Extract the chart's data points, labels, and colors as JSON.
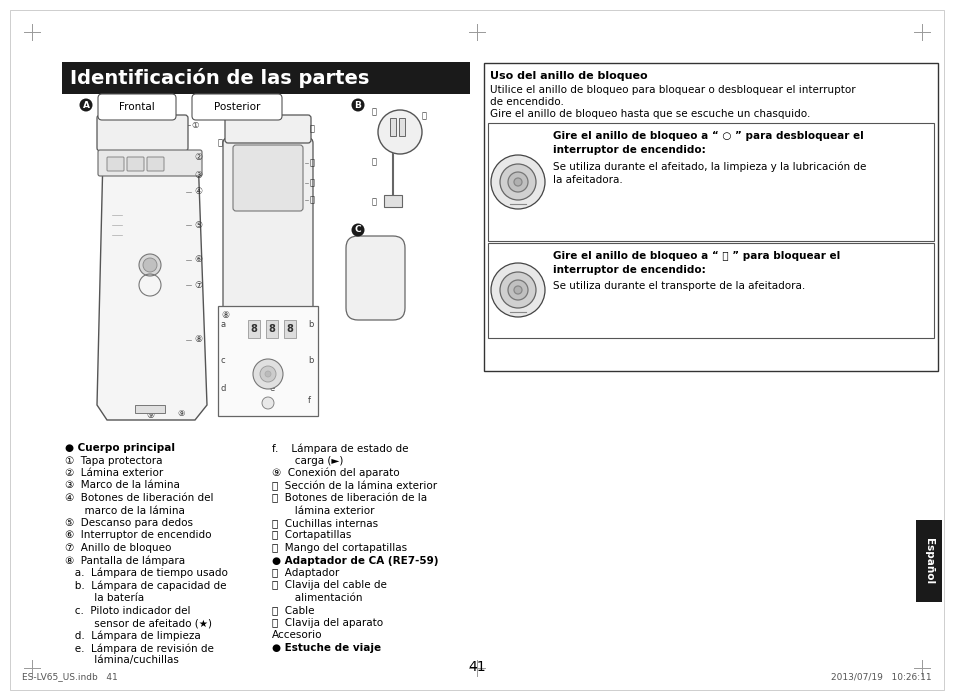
{
  "title": "Identificación de las partes",
  "title_bg": "#1a1a1a",
  "title_color": "#ffffff",
  "page_bg": "#ffffff",
  "page_number": "41",
  "footer_left": "ES-LV65_US.indb   41",
  "footer_right": "2013/07/19   10:26:11",
  "right_box_title": "Uso del anillo de bloqueo",
  "right_box_line1": "Utilice el anillo de bloqueo para bloquear o desbloquear el interruptor",
  "right_box_line2": "de encendido.",
  "right_box_line3": "Gire el anillo de bloqueo hasta que se escuche un chasquido.",
  "inner_box1_bold1": "Gire el anillo de bloqueo a “ ○ ” para desbloquear el",
  "inner_box1_bold2": "interruptor de encendido:",
  "inner_box1_text1": "Se utiliza durante el afeitado, la limpieza y la lubricación de",
  "inner_box1_text2": "la afeitadora.",
  "inner_box2_bold1": "Gire el anillo de bloqueo a “ 🔒 ” para bloquear el",
  "inner_box2_bold2": "interruptor de encendido:",
  "inner_box2_text1": "Se utiliza durante el transporte de la afeitadora.",
  "espanol_label": "Español",
  "left_col_items": [
    [
      true,
      false,
      "● Cuerpo principal"
    ],
    [
      false,
      false,
      "①  Tapa protectora"
    ],
    [
      false,
      false,
      "②  Lámina exterior"
    ],
    [
      false,
      false,
      "③  Marco de la lámina"
    ],
    [
      false,
      false,
      "④  Botones de liberación del"
    ],
    [
      false,
      false,
      "      marco de la lámina"
    ],
    [
      false,
      false,
      "⑤  Descanso para dedos"
    ],
    [
      false,
      false,
      "⑥  Interruptor de encendido"
    ],
    [
      false,
      false,
      "⑦  Anillo de bloqueo"
    ],
    [
      false,
      false,
      "⑧  Pantalla de lámpara"
    ],
    [
      false,
      false,
      "   a.  Lámpara de tiempo usado"
    ],
    [
      false,
      false,
      "   b.  Lámpara de capacidad de"
    ],
    [
      false,
      false,
      "         la batería"
    ],
    [
      false,
      false,
      "   c.  Piloto indicador del"
    ],
    [
      false,
      false,
      "         sensor de afeitado (★)"
    ],
    [
      false,
      false,
      "   d.  Lámpara de limpieza"
    ],
    [
      false,
      false,
      "   e.  Lámpara de revisión de"
    ],
    [
      false,
      false,
      "         lámina/cuchillas"
    ]
  ],
  "right_col_items": [
    [
      false,
      false,
      "f.    Lámpara de estado de"
    ],
    [
      false,
      false,
      "       carga (►)"
    ],
    [
      false,
      false,
      "⑨  Conexión del aparato"
    ],
    [
      false,
      false,
      "⑪  Sección de la lámina exterior"
    ],
    [
      false,
      false,
      "⑫  Botones de liberación de la"
    ],
    [
      false,
      false,
      "       lámina exterior"
    ],
    [
      false,
      false,
      "⑬  Cuchillas internas"
    ],
    [
      false,
      false,
      "⑭  Cortapatillas"
    ],
    [
      false,
      false,
      "⑮  Mango del cortapatillas"
    ],
    [
      true,
      false,
      "● Adaptador de CA (RE7-59)"
    ],
    [
      false,
      false,
      "⑯  Adaptador"
    ],
    [
      false,
      false,
      "⑰  Clavija del cable de"
    ],
    [
      false,
      false,
      "       alimentación"
    ],
    [
      false,
      false,
      "⑱  Cable"
    ],
    [
      false,
      false,
      "⑲  Clavija del aparato"
    ],
    [
      false,
      false,
      "Accesorio"
    ],
    [
      true,
      false,
      "● Estuche de viaje"
    ]
  ]
}
